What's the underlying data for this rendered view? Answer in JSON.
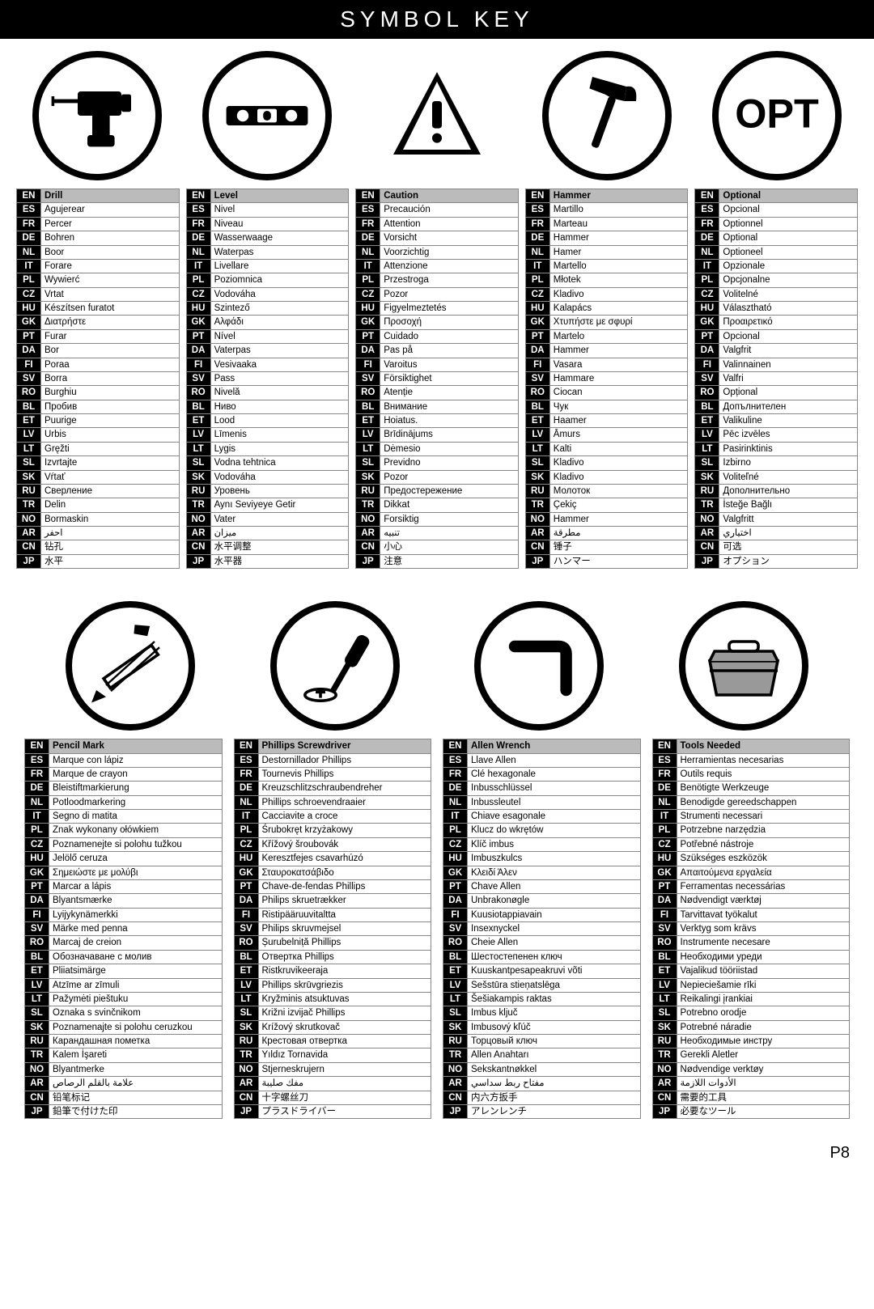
{
  "header": "SYMBOL KEY",
  "page": "P8",
  "langs": [
    "EN",
    "ES",
    "FR",
    "DE",
    "NL",
    "IT",
    "PL",
    "CZ",
    "HU",
    "GK",
    "PT",
    "DA",
    "FI",
    "SV",
    "RO",
    "BL",
    "ET",
    "LV",
    "LT",
    "SL",
    "SK",
    "RU",
    "TR",
    "NO",
    "AR",
    "CN",
    "JP"
  ],
  "topSymbols": [
    {
      "icon": "drill",
      "translations": [
        "Drill",
        "Agujerear",
        "Percer",
        "Bohren",
        "Boor",
        "Forare",
        "Wywierć",
        "Vrtat",
        "Készítsen furatot",
        "Διατρήστε",
        "Furar",
        "Bor",
        "Poraa",
        "Borra",
        "Burghiu",
        "Пробив",
        "Puurige",
        "Urbis",
        "Gręžti",
        "Izvrtajte",
        "Vŕtať",
        "Сверление",
        "Delin",
        "Bormaskin",
        "احفر",
        "钻孔",
        "水平"
      ]
    },
    {
      "icon": "level",
      "translations": [
        "Level",
        "Nivel",
        "Niveau",
        "Wasserwaage",
        "Waterpas",
        "Livellare",
        "Poziomnica",
        "Vodováha",
        "Szintező",
        "Αλφάδι",
        "Nível",
        "Vaterpas",
        "Vesivaaka",
        "Pass",
        "Nivelă",
        "Ниво",
        "Lood",
        "Līmenis",
        "Lygis",
        "Vodna tehtnica",
        "Vodováha",
        "Уровень",
        "Aynı Seviyeye Getir",
        "Vater",
        "ميزان",
        "水平调整",
        "水平器"
      ]
    },
    {
      "icon": "caution",
      "translations": [
        "Caution",
        "Precaución",
        "Attention",
        "Vorsicht",
        "Voorzichtig",
        "Attenzione",
        "Przestroga",
        "Pozor",
        "Figyelmeztetés",
        "Προσοχή",
        "Cuidado",
        "Pas på",
        "Varoitus",
        "Försiktighet",
        "Atenție",
        "Внимание",
        "Hoiatus.",
        "Brīdinājums",
        "Dėmesio",
        "Previdno",
        "Pozor",
        "Предостережение",
        "Dikkat",
        "Forsiktig",
        "تنبيه",
        "小心",
        "注意"
      ]
    },
    {
      "icon": "hammer",
      "translations": [
        "Hammer",
        "Martillo",
        "Marteau",
        "Hammer",
        "Hamer",
        "Martello",
        "Młotek",
        "Kladivo",
        "Kalapács",
        "Χτυπήστε με σφυρί",
        "Martelo",
        "Hammer",
        "Vasara",
        "Hammare",
        "Ciocan",
        "Чук",
        "Haamer",
        "Āmurs",
        "Kalti",
        "Kladivo",
        "Kladivo",
        "Молоток",
        "Çekiç",
        "Hammer",
        "مطرقة",
        "锤子",
        "ハンマー"
      ]
    },
    {
      "icon": "opt",
      "translations": [
        "Optional",
        "Opcional",
        "Optionnel",
        "Optional",
        "Optioneel",
        "Opzionale",
        "Opcjonalne",
        "Volitelné",
        "Választható",
        "Προαιρετικό",
        "Opcional",
        "Valgfrit",
        "Valinnainen",
        "Valfri",
        "Opțional",
        "Допълнителен",
        "Valikuline",
        "Pēc izvēles",
        "Pasirinktinis",
        "Izbirno",
        "Voliteľné",
        "Дополнительно",
        "İsteğe Bağlı",
        "Valgfritt",
        "اختياري",
        "可选",
        "オプション"
      ]
    }
  ],
  "bottomSymbols": [
    {
      "icon": "pencil",
      "translations": [
        "Pencil Mark",
        "Marque con lápiz",
        "Marque de crayon",
        "Bleistiftmarkierung",
        "Potloodmarkering",
        "Segno di matita",
        "Znak wykonany ołówkiem",
        "Poznamenejte si polohu tužkou",
        "Jelölő ceruza",
        "Σημειώστε με μολύβι",
        "Marcar a lápis",
        "Blyantsmærke",
        "Lyijykynämerkki",
        "Märke med penna",
        "Marcaj de creion",
        "Обозначаване с молив",
        "Pliiatsimärge",
        "Atzīme ar zīmuli",
        "Pažymėti pieštuku",
        "Oznaka s svinčnikom",
        "Poznamenajte si polohu ceruzkou",
        "Карандашная пометка",
        "Kalem İşareti",
        "Blyantmerke",
        "علامة بالقلم الرصاص",
        "铅笔标记",
        "鉛筆で付けた印"
      ]
    },
    {
      "icon": "phillips",
      "translations": [
        "Phillips Screwdriver",
        "Destornillador Phillips",
        "Tournevis Phillips",
        "Kreuzschlitzschraubendreher",
        "Phillips schroevendraaier",
        "Cacciavite a croce",
        "Śrubokręt krzyżakowy",
        "Křížový šroubovák",
        "Keresztfejes csavarhúzó",
        "Σταυροκατσάβιδο",
        "Chave-de-fendas Phillips",
        "Philips skruetrækker",
        "Ristipääruuvitaltta",
        "Philips skruvmejsel",
        "Șurubelniță Phillips",
        "Отвертка Phillips",
        "Ristkruvikeeraja",
        "Phillips skrūvgriezis",
        "Kryžminis atsuktuvas",
        "Križni izvijač Phillips",
        "Krížový skrutkovač",
        "Крестовая отвертка",
        "Yıldız Tornavida",
        "Stjerneskrujern",
        "مفك صليبة",
        "十字螺丝刀",
        "プラスドライバー"
      ]
    },
    {
      "icon": "allen",
      "translations": [
        "Allen Wrench",
        "Llave Allen",
        "Clé hexagonale",
        "Inbusschlüssel",
        "Inbussleutel",
        "Chiave esagonale",
        "Klucz do wkrętów",
        "Klíč imbus",
        "Imbuszkulcs",
        "Κλειδί Άλεν",
        "Chave Allen",
        "Unbrakonøgle",
        "Kuusiotappiavain",
        "Insexnyckel",
        "Cheie Allen",
        "Шестостепенен ключ",
        "Kuuskantpesapeakruvi võti",
        "Sešstūra stieņatslēga",
        "Šešiakampis raktas",
        "Imbus ključ",
        "Imbusový kľúč",
        "Торцовый ключ",
        "Allen Anahtarı",
        "Sekskantnøkkel",
        "مفتاح ربط سداسي",
        "内六方扳手",
        "アレンレンチ"
      ]
    },
    {
      "icon": "toolbox",
      "translations": [
        "Tools Needed",
        "Herramientas necesarias",
        "Outils requis",
        "Benötigte Werkzeuge",
        "Benodigde gereedschappen",
        "Strumenti necessari",
        "Potrzebne narzędzia",
        "Potřebné nástroje",
        "Szükséges eszközök",
        "Απαιτούμενα εργαλεία",
        "Ferramentas necessárias",
        "Nødvendigt værktøj",
        "Tarvittavat työkalut",
        "Verktyg som krävs",
        "Instrumente necesare",
        "Необходими уреди",
        "Vajalikud tööriistad",
        "Nepieciešamie rīki",
        "Reikalingi įrankiai",
        "Potrebno orodje",
        "Potrebné náradie",
        "Необходимые инстру",
        "Gerekli Aletler",
        "Nødvendige verktøy",
        "الأدوات اللازمة",
        "需要的工具",
        "必要なツール"
      ]
    }
  ]
}
